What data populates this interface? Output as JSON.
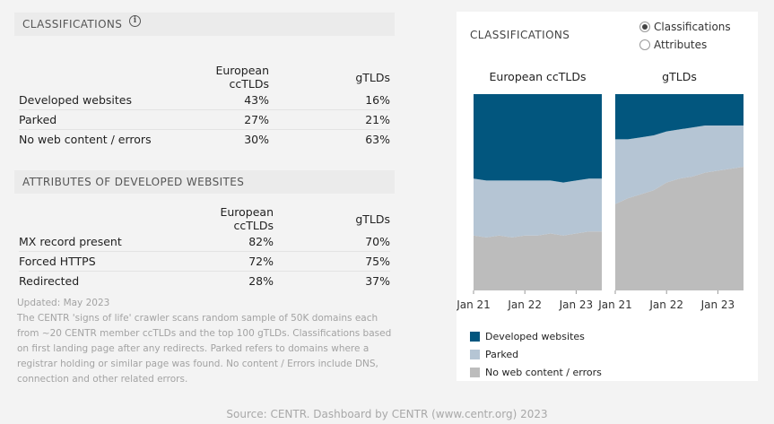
{
  "classifications_table": {
    "title": "CLASSIFICATIONS",
    "col_headers": [
      "European ccTLDs",
      "gTLDs"
    ],
    "rows": [
      {
        "label": "Developed websites",
        "cctld": "43%",
        "gtld": "16%"
      },
      {
        "label": "Parked",
        "cctld": "27%",
        "gtld": "21%"
      },
      {
        "label": "No web content / errors",
        "cctld": "30%",
        "gtld": "63%"
      }
    ]
  },
  "attributes_table": {
    "title": "ATTRIBUTES OF DEVELOPED WEBSITES",
    "col_headers": [
      "European ccTLDs",
      "gTLDs"
    ],
    "rows": [
      {
        "label": "MX record present",
        "cctld": "82%",
        "gtld": "70%"
      },
      {
        "label": "Forced HTTPS",
        "cctld": "72%",
        "gtld": "75%"
      },
      {
        "label": "Redirected",
        "cctld": "28%",
        "gtld": "37%"
      }
    ]
  },
  "notes": {
    "updated": "Updated: May 2023",
    "body": "The CENTR 'signs of life' crawler scans random sample of 50K domains each from ~20 CENTR member ccTLDs and the top 100  gTLDs.  Classifications based on first landing page after any redirects.  Parked refers to domains where a registrar holding or similar page was found.  No content / Errors include DNS, connection and other related errors."
  },
  "chart_panel": {
    "title": "CLASSIFICATIONS",
    "radio_options": [
      {
        "label": "Classifications",
        "selected": true
      },
      {
        "label": "Attributes",
        "selected": false
      }
    ]
  },
  "colors": {
    "developed": "#02567e",
    "parked": "#b5c5d4",
    "no_content": "#bcbcbc"
  },
  "chart_data": {
    "type": "area",
    "stacked": true,
    "normalized": true,
    "x_ticks": [
      "Jan 21",
      "Jan 22",
      "Jan 23"
    ],
    "series_order_bottom_to_top": [
      "No web content / errors",
      "Parked",
      "Developed websites"
    ],
    "legend": [
      "Developed websites",
      "Parked",
      "No web content / errors"
    ],
    "legend_position": "bottom",
    "panels": [
      {
        "title": "European ccTLDs",
        "x": [
          "Jan 21",
          "Apr 21",
          "Jul 21",
          "Oct 21",
          "Jan 22",
          "Apr 22",
          "Jul 22",
          "Oct 22",
          "Jan 23",
          "Apr 23",
          "May 23"
        ],
        "series": [
          {
            "name": "No web content / errors",
            "values": [
              28,
              27,
              28,
              27,
              28,
              28,
              29,
              28,
              29,
              30,
              30
            ]
          },
          {
            "name": "Parked",
            "values": [
              29,
              29,
              28,
              29,
              28,
              28,
              27,
              27,
              27,
              27,
              27
            ]
          },
          {
            "name": "Developed websites",
            "values": [
              43,
              44,
              44,
              44,
              44,
              44,
              44,
              45,
              44,
              43,
              43
            ]
          }
        ]
      },
      {
        "title": "gTLDs",
        "x": [
          "Jan 21",
          "Apr 21",
          "Jul 21",
          "Oct 21",
          "Jan 22",
          "Apr 22",
          "Jul 22",
          "Oct 22",
          "Jan 23",
          "Apr 23",
          "May 23"
        ],
        "series": [
          {
            "name": "No web content / errors",
            "values": [
              44,
              47,
              49,
              51,
              55,
              57,
              58,
              60,
              61,
              62,
              63
            ]
          },
          {
            "name": "Parked",
            "values": [
              33,
              30,
              29,
              28,
              26,
              25,
              25,
              24,
              23,
              22,
              21
            ]
          },
          {
            "name": "Developed websites",
            "values": [
              23,
              23,
              22,
              21,
              19,
              18,
              17,
              16,
              16,
              16,
              16
            ]
          }
        ]
      }
    ],
    "ylim": [
      0,
      100
    ]
  },
  "footer": "Source: CENTR.  Dashboard by CENTR (www.centr.org) 2023"
}
